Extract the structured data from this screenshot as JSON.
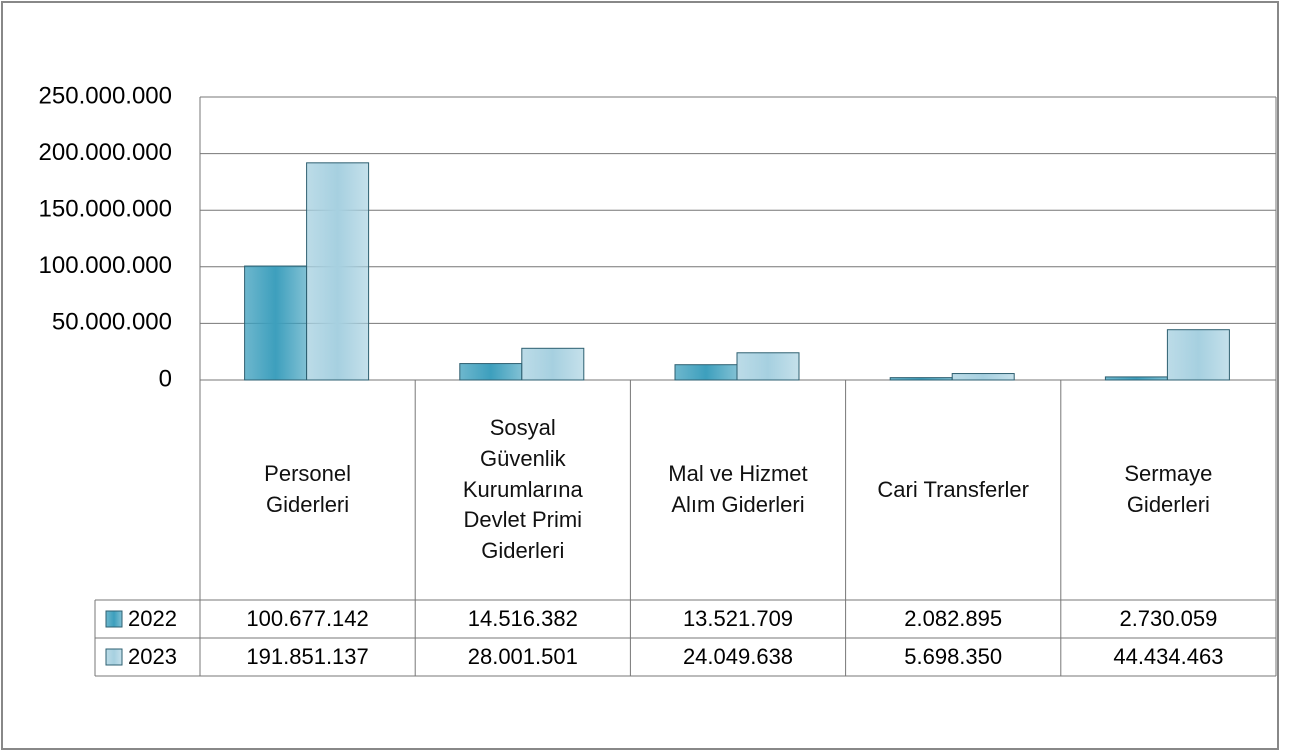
{
  "chart_data": {
    "type": "bar",
    "categories": [
      "Personel Giderleri",
      "Sosyal Güvenlik Kurumlarına Devlet Primi Giderleri",
      "Mal ve Hizmet Alım Giderleri",
      "Cari Transferler",
      "Sermaye Giderleri"
    ],
    "series": [
      {
        "name": "2022",
        "color": "#3d9fbd",
        "values": [
          100677142,
          14516382,
          13521709,
          2082895,
          2730059
        ],
        "value_labels": [
          "100.677.142",
          "14.516.382",
          "13.521.709",
          "2.082.895",
          "2.730.059"
        ]
      },
      {
        "name": "2023",
        "color": "#a6d0e0",
        "values": [
          191851137,
          28001501,
          24049638,
          5698350,
          44434463
        ],
        "value_labels": [
          "191.851.137",
          "28.001.501",
          "24.049.638",
          "5.698.350",
          "44.434.463"
        ]
      }
    ],
    "ylim": [
      0,
      250000000
    ],
    "yticks": [
      0,
      {
        "value": 50000000,
        "label": "50.000.000"
      },
      {
        "value": 100000000,
        "label": "100.000.000"
      },
      {
        "value": 150000000,
        "label": "150.000.000"
      },
      {
        "value": 200000000,
        "label": "200.000.000"
      },
      {
        "value": 250000000,
        "label": "250.000.000"
      }
    ],
    "grid": true
  }
}
